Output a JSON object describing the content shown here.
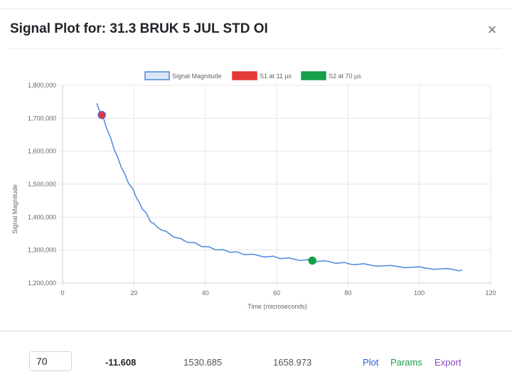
{
  "modal": {
    "title": "Signal Plot for: 31.3 BRUK 5 JUL STD OI",
    "close_glyph": "×"
  },
  "chart_data": {
    "type": "line",
    "xlabel": "Time (microseconds)",
    "ylabel": "Signal Magnitude",
    "xlim": [
      0,
      120
    ],
    "ylim": [
      1200000,
      1800000
    ],
    "x_ticks": [
      0,
      20,
      40,
      60,
      80,
      100,
      120
    ],
    "x_tick_labels": [
      "0",
      "20",
      "40",
      "60",
      "80",
      "100",
      "120"
    ],
    "y_ticks": [
      1200000,
      1300000,
      1400000,
      1500000,
      1600000,
      1700000,
      1800000
    ],
    "y_tick_labels": [
      "1,200,000",
      "1,300,000",
      "1,400,000",
      "1,500,000",
      "1,600,000",
      "1,700,000",
      "1,800,000"
    ],
    "grid": true,
    "legend_position": "top-center",
    "series": [
      {
        "name": "Signal Magnitude",
        "color": "#4a89dc",
        "x": [
          9.5,
          10,
          11,
          12,
          13,
          14,
          15,
          16,
          17,
          18,
          19,
          20,
          21,
          22,
          23,
          24,
          25,
          26,
          28,
          30,
          32,
          34,
          36,
          38,
          40,
          42,
          44,
          46,
          48,
          50,
          52,
          55,
          58,
          60,
          62,
          65,
          68,
          70,
          72,
          75,
          78,
          80,
          83,
          86,
          90,
          94,
          98,
          102,
          106,
          110,
          112
        ],
        "y": [
          1745000,
          1733000,
          1710000,
          1682000,
          1653000,
          1622000,
          1592000,
          1565000,
          1540000,
          1515000,
          1495000,
          1478000,
          1453000,
          1432000,
          1418000,
          1400000,
          1383000,
          1376000,
          1360000,
          1349000,
          1337000,
          1329000,
          1323000,
          1317000,
          1310000,
          1305000,
          1301000,
          1297000,
          1294000,
          1290000,
          1287000,
          1283000,
          1280000,
          1278000,
          1275000,
          1272000,
          1270000,
          1268000,
          1266000,
          1264000,
          1261000,
          1259000,
          1257000,
          1255000,
          1252000,
          1250000,
          1248000,
          1245000,
          1243000,
          1240000,
          1239000
        ]
      },
      {
        "name": "S1 at 11 µs",
        "color": "#e53935",
        "x": [
          11
        ],
        "y": [
          1710000
        ]
      },
      {
        "name": "S2 at 70 µs",
        "color": "#14a04a",
        "x": [
          70
        ],
        "y": [
          1268000
        ]
      }
    ]
  },
  "bottom": {
    "input_value": "70",
    "slope": "-11.608",
    "value1": "1530.685",
    "value2": "1658.973",
    "links": {
      "plot": "Plot",
      "params": "Params",
      "export": "Export"
    },
    "colors": {
      "plot": "#2563d6",
      "params": "#1f9d4a",
      "export": "#8e44c8"
    }
  }
}
